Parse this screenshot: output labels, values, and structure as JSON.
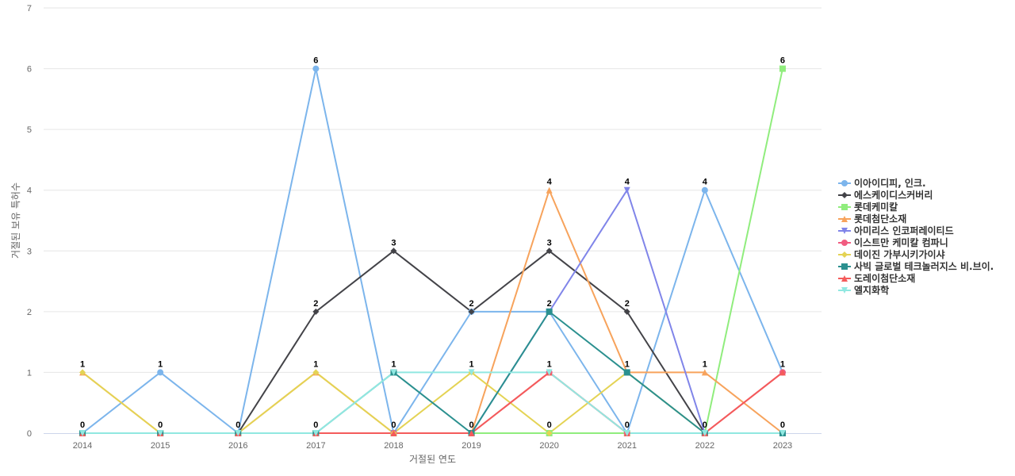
{
  "chart_data": {
    "type": "line",
    "categories": [
      "2014",
      "2015",
      "2016",
      "2017",
      "2018",
      "2019",
      "2020",
      "2021",
      "2022",
      "2023"
    ],
    "xlabel": "거절된 연도",
    "ylabel": "거절된 보유 특허수",
    "ylim": [
      0,
      7
    ],
    "yticks": [
      "0",
      "1",
      "2",
      "3",
      "4",
      "5",
      "6",
      "7"
    ],
    "grid": "horizontal",
    "legend_position": "right",
    "series": [
      {
        "name": "이아이디피, 인크.",
        "color": "#7cb5ec",
        "marker": "circle",
        "values": [
          0,
          1,
          0,
          6,
          0,
          2,
          2,
          0,
          4,
          1
        ]
      },
      {
        "name": "에스케이디스커버리",
        "color": "#434348",
        "marker": "diamond",
        "values": [
          0,
          0,
          0,
          2,
          3,
          2,
          3,
          2,
          0,
          0
        ]
      },
      {
        "name": "롯데케미칼",
        "color": "#90ed7d",
        "marker": "square",
        "values": [
          0,
          0,
          0,
          0,
          0,
          0,
          0,
          0,
          0,
          6
        ]
      },
      {
        "name": "롯데첨단소재",
        "color": "#f7a35c",
        "marker": "triangle",
        "values": [
          1,
          0,
          0,
          1,
          0,
          0,
          4,
          1,
          1,
          0
        ]
      },
      {
        "name": "아미리스 인코퍼레이티드",
        "color": "#8085e9",
        "marker": "triangle-down",
        "values": [
          0,
          0,
          0,
          0,
          0,
          0,
          2,
          4,
          0,
          0
        ]
      },
      {
        "name": "이스트만 케미칼 컴파니",
        "color": "#f15c80",
        "marker": "circle",
        "values": [
          0,
          0,
          0,
          0,
          0,
          0,
          1,
          0,
          0,
          1
        ]
      },
      {
        "name": "데이진 가부시키가이샤",
        "color": "#e4d354",
        "marker": "diamond",
        "values": [
          1,
          0,
          0,
          1,
          0,
          1,
          0,
          1,
          0,
          0
        ]
      },
      {
        "name": "사빅 글로벌 테크놀러지스 비.브이.",
        "color": "#2b908f",
        "marker": "square",
        "values": [
          0,
          0,
          0,
          0,
          1,
          0,
          2,
          1,
          0,
          0
        ]
      },
      {
        "name": "도레이첨단소재",
        "color": "#f45b5b",
        "marker": "triangle",
        "values": [
          0,
          0,
          0,
          0,
          0,
          0,
          1,
          0,
          0,
          1
        ]
      },
      {
        "name": "엘지화학",
        "color": "#91e8e1",
        "marker": "triangle-down",
        "values": [
          0,
          0,
          0,
          0,
          1,
          1,
          1,
          0,
          0,
          0
        ]
      }
    ],
    "data_labels": [
      {
        "category": "2014",
        "value": 1,
        "text": "1"
      },
      {
        "category": "2014",
        "value": 0,
        "text": "0"
      },
      {
        "category": "2015",
        "value": 1,
        "text": "1"
      },
      {
        "category": "2015",
        "value": 0,
        "text": "0"
      },
      {
        "category": "2016",
        "value": 0,
        "text": "0"
      },
      {
        "category": "2017",
        "value": 6,
        "text": "6"
      },
      {
        "category": "2017",
        "value": 2,
        "text": "2"
      },
      {
        "category": "2017",
        "value": 1,
        "text": "1"
      },
      {
        "category": "2017",
        "value": 0,
        "text": "0"
      },
      {
        "category": "2018",
        "value": 3,
        "text": "3"
      },
      {
        "category": "2018",
        "value": 1,
        "text": "1"
      },
      {
        "category": "2018",
        "value": 0,
        "text": "0"
      },
      {
        "category": "2019",
        "value": 2,
        "text": "2"
      },
      {
        "category": "2019",
        "value": 1,
        "text": "1"
      },
      {
        "category": "2019",
        "value": 0,
        "text": "0"
      },
      {
        "category": "2020",
        "value": 4,
        "text": "4"
      },
      {
        "category": "2020",
        "value": 3,
        "text": "3"
      },
      {
        "category": "2020",
        "value": 2,
        "text": "2"
      },
      {
        "category": "2020",
        "value": 1,
        "text": "1"
      },
      {
        "category": "2020",
        "value": 0,
        "text": "0"
      },
      {
        "category": "2021",
        "value": 4,
        "text": "4"
      },
      {
        "category": "2021",
        "value": 2,
        "text": "2"
      },
      {
        "category": "2021",
        "value": 1,
        "text": "1"
      },
      {
        "category": "2021",
        "value": 0,
        "text": "0"
      },
      {
        "category": "2022",
        "value": 4,
        "text": "4"
      },
      {
        "category": "2022",
        "value": 1,
        "text": "1"
      },
      {
        "category": "2022",
        "value": 0,
        "text": "0"
      },
      {
        "category": "2023",
        "value": 6,
        "text": "6"
      },
      {
        "category": "2023",
        "value": 1,
        "text": "1"
      },
      {
        "category": "2023",
        "value": 0,
        "text": "0"
      }
    ]
  }
}
